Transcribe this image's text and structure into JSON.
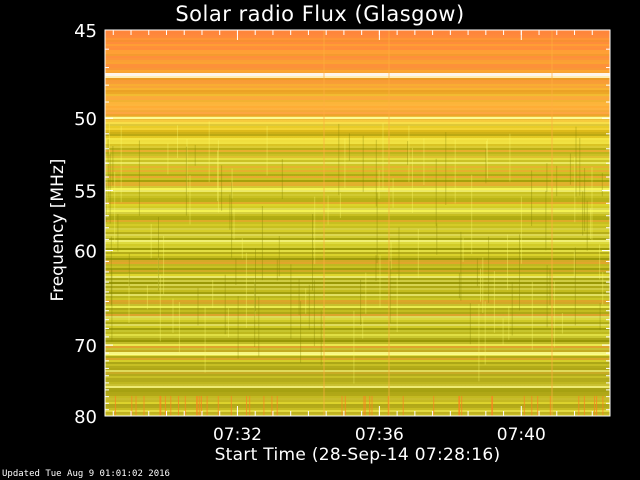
{
  "chart_data": {
    "type": "heatmap",
    "title": "Solar radio Flux (Glasgow)",
    "xlabel": "Start Time (28-Sep-14 07:28:16)",
    "ylabel": "Frequency [MHz]",
    "x_start": "07:28:16",
    "x_end": "07:42:30",
    "x_ticks": [
      "07:32",
      "07:36",
      "07:40"
    ],
    "y_ticks": [
      45,
      50,
      55,
      60,
      70,
      80
    ],
    "ylim": [
      80,
      45
    ],
    "y_scale": "reciprocal",
    "colors": {
      "background": "#000000",
      "high_flux": "#ff7f3a",
      "mid_flux": "#ffb000",
      "low_flux": "#b8b000",
      "peak": "#ffff80"
    }
  },
  "footer": {
    "updated": "Updated Tue Aug  9 01:01:02 2016"
  }
}
